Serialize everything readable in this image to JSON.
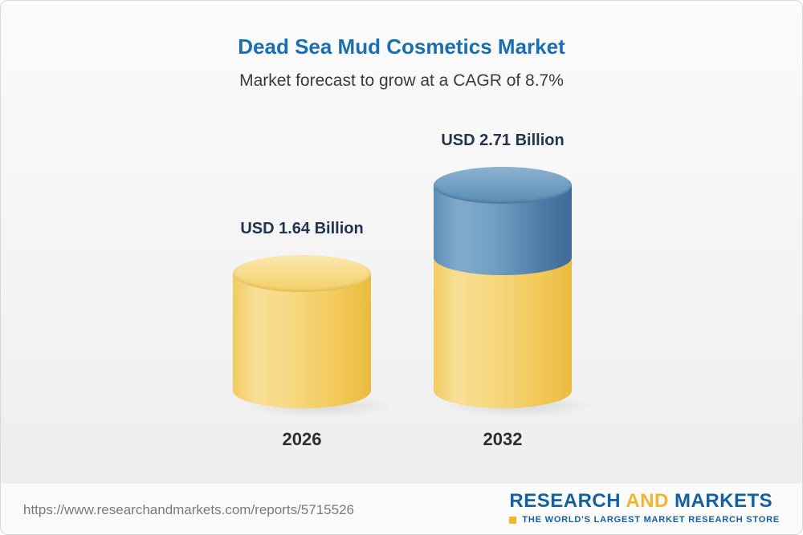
{
  "header": {
    "title": "Dead Sea Mud Cosmetics Market",
    "subtitle": "Market forecast to grow at a CAGR of 8.7%"
  },
  "chart_data": {
    "type": "bar",
    "categories": [
      "2026",
      "2032"
    ],
    "values": [
      1.64,
      2.71
    ],
    "value_labels": [
      "USD 1.64 Billion",
      "USD 2.71 Billion"
    ],
    "unit": "USD Billion",
    "cagr": "8.7%",
    "title": "Dead Sea Mud Cosmetics Market",
    "subtitle": "Market forecast to grow at a CAGR of 8.7%",
    "xlabel": "",
    "ylabel": "",
    "legend": "none",
    "grid": false,
    "colors": {
      "base_segment": "#f5cf63",
      "growth_segment": "#5d8db5",
      "title": "#1a6fb0"
    }
  },
  "bars": [
    {
      "value_label": "USD 1.64 Billion",
      "year": "2026"
    },
    {
      "value_label": "USD 2.71 Billion",
      "year": "2032"
    }
  ],
  "footer": {
    "url": "https://www.researchandmarkets.com/reports/5715526",
    "logo": {
      "part1": "RESEARCH",
      "part2": "AND",
      "part3": "MARKETS",
      "tagline": "THE WORLD'S LARGEST MARKET RESEARCH STORE"
    }
  }
}
